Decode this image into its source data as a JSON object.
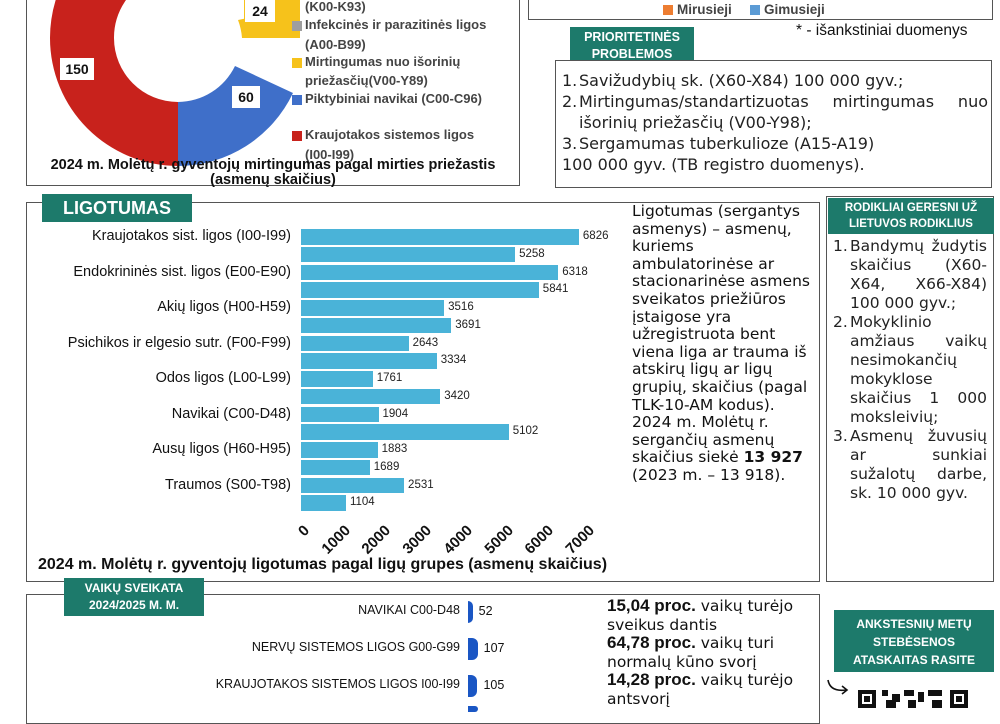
{
  "mortality": {
    "labels": {
      "k00": "(K00-K93)",
      "infekcines": "Infekcinės ir parazitinės ligos",
      "a00": "(A00-B99)",
      "mirtingumas1": "Mirtingumas nuo išorinių",
      "mirtingumas2": "priežasčių(V00-Y89)",
      "piktybiniai": "Piktybiniai navikai (C00-C96)",
      "kraujotakos": "Kraujotakos sistemos ligos",
      "i00": "(I00-I99)"
    },
    "values": {
      "v24": "24",
      "v60": "60",
      "v150": "150"
    },
    "caption1": "2024 m. Molėtų r. gyventojų mirtingumas pagal mirties priežastis",
    "caption2": "(asmenų skaičius)",
    "colors": {
      "grey": "#9e9e9e",
      "yellow": "#f6c21b",
      "blue": "#3f6fc9",
      "red": "#c8221c"
    }
  },
  "births_legend": {
    "mirusieji": "Mirusieji",
    "gimusieji": "Gimusieji",
    "mirusieji_color": "#ed7d31",
    "gimusieji_color": "#5b9bd5"
  },
  "footnote": "* - išankstiniai duomenys",
  "priorities": {
    "title1": "PRIORITETINĖS",
    "title2": "PROBLEMOS",
    "items": [
      "Savižudybių sk. (X60-X84) 100 000 gyv.;",
      "Mirtingumas/standartizuotas mirtingumas nuo išorinių priežasčių (V00-Y98);",
      "Sergamumas tuberkulioze (A15-A19)"
    ],
    "tail": "100 000 gyv. (TB registro duomenys)."
  },
  "better": {
    "title1": "RODIKLIAI GERESNI UŽ",
    "title2": "LIETUVOS RODIKLIUS",
    "items": [
      "Bandymų žudytis skaičius (X60-X64, X66-X84) 100 000 gyv.;",
      "Mokyklinio amžiaus vaikų nesimokančių mokyklose skaičius 1 000 moksleivių;",
      "Asmenų žuvusių ar sunkiai sužalotų darbe, sk. 10 000 gyv."
    ]
  },
  "morbidity": {
    "title": "LIGOTUMAS",
    "caption": "2024 m. Molėtų r. gyventojų ligotumas pagal ligų grupes (asmenų skaičius)",
    "description": "Ligotumas (sergantys asmenys) – asmenų, kuriems ambulatorinėse ar stacionarinėse asmens sveikatos priežiūros įstaigose yra užregistruota bent viena liga ar trauma iš atskirų ligų ar ligų grupių, skaičius (pagal TLK-10-AM kodus). 2024 m. Molėtų r. sergančių asmenų skaičius siekė ",
    "description_bold": "13 927",
    "description_tail": "(2023 m. – 13 918)."
  },
  "chart_data": {
    "type": "bar",
    "orientation": "horizontal",
    "categories": [
      "Kraujotakos sist. ligos (I00-I99)",
      "Endokrininės sist. ligos (E00-E90)",
      "Akių ligos (H00-H59)",
      "Psichikos ir elgesio sutr. (F00-F99)",
      "Odos ligos (L00-L99)",
      "Navikai (C00-D48)",
      "Ausų ligos (H60-H95)",
      "Traumos (S00-T98)"
    ],
    "series": [
      {
        "values": [
          6826,
          6318,
          3516,
          2643,
          1761,
          1904,
          1883,
          2531
        ]
      },
      {
        "values": [
          5258,
          5841,
          3691,
          3334,
          3420,
          5102,
          1689,
          1104
        ]
      }
    ],
    "xticks": [
      "0",
      "1000",
      "2000",
      "3000",
      "4000",
      "5000",
      "6000",
      "7000"
    ],
    "xlim": [
      0,
      7000
    ],
    "color": "#4ab3d8",
    "title": "2024 m. Molėtų r. gyventojų ligotumas pagal ligų grupes (asmenų skaičius)"
  },
  "children": {
    "title1": "VAIKŲ SVEIKATA",
    "title2": "2024/2025 M. M.",
    "rows": [
      {
        "label": "NAVIKAI C00-D48",
        "value": 52
      },
      {
        "label": "NERVŲ SISTEMOS LIGOS G00-G99",
        "value": 107
      },
      {
        "label": "KRAUJOTAKOS SISTEMOS LIGOS I00-I99",
        "value": 105
      }
    ],
    "stats": [
      {
        "bold": "15,04 proc.",
        "rest": " vaikų turėjo",
        "line2": "sveikus dantis"
      },
      {
        "bold": "64,78 proc.",
        "rest": " vaikų turi",
        "line2": "normalų kūno svorį"
      },
      {
        "bold": "14,28 proc.",
        "rest": " vaikų turėjo",
        "line2": "antsvorį"
      }
    ]
  },
  "earlier": {
    "title1": "ANKSTESNIŲ METŲ",
    "title2": "STEBĖSENOS",
    "title3": "ATASKAITAS RASITE"
  }
}
